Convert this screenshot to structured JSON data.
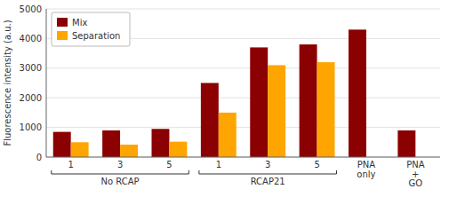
{
  "chart_data": {
    "type": "bar",
    "categories": [
      "1",
      "3",
      "5",
      "1",
      "3",
      "5",
      "PNA\nonly",
      "PNA\n+\nGO"
    ],
    "series": [
      {
        "name": "Mix",
        "color": "#8B0000",
        "values": [
          850,
          900,
          950,
          2500,
          3700,
          3800,
          4300,
          900
        ]
      },
      {
        "name": "Separation",
        "color": "#FFA500",
        "values": [
          500,
          420,
          520,
          1500,
          3100,
          3200,
          0,
          0
        ]
      }
    ],
    "y_label": "Fluorescence intensity (a.u.)",
    "ylim": [
      0,
      5000
    ],
    "yticks": [
      0,
      1000,
      2000,
      3000,
      4000,
      5000
    ],
    "grid": true,
    "legend": "upper left",
    "annotations": [
      {
        "text": "No RCAP",
        "span": [
          0,
          2
        ]
      },
      {
        "text": "RCAP21",
        "span": [
          3,
          5
        ]
      }
    ]
  }
}
